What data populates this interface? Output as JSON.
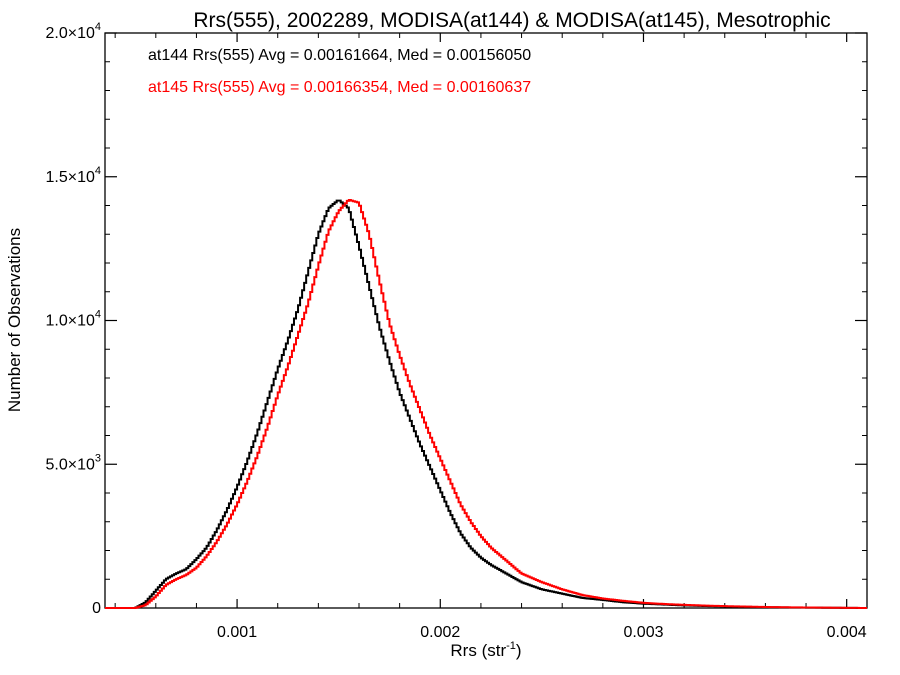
{
  "chart_data": {
    "type": "line",
    "title": "Rrs(555), 2002289, MODISA(at144) & MODISA(at145), Mesotrophic",
    "xlabel": {
      "main": "Rrs (str",
      "sup": "-1",
      "end": ")"
    },
    "ylabel": "Number of Observations",
    "xlim": [
      0.00035,
      0.0041
    ],
    "ylim": [
      0,
      20000
    ],
    "x_ticks": [
      {
        "value": 0.001,
        "label": "0.001"
      },
      {
        "value": 0.002,
        "label": "0.002"
      },
      {
        "value": 0.003,
        "label": "0.003"
      },
      {
        "value": 0.004,
        "label": "0.004"
      }
    ],
    "y_ticks": [
      {
        "value": 0,
        "mant": "0",
        "exp": ""
      },
      {
        "value": 5000,
        "mant": "5.0×10",
        "exp": "3"
      },
      {
        "value": 10000,
        "mant": "1.0×10",
        "exp": "4"
      },
      {
        "value": 15000,
        "mant": "1.5×10",
        "exp": "4"
      },
      {
        "value": 20000,
        "mant": "2.0×10",
        "exp": "4"
      }
    ],
    "annotations": [
      "at144 Rrs(555) Avg = 0.00161664, Med = 0.00156050",
      "at145 Rrs(555) Avg = 0.00166354, Med = 0.00160637"
    ],
    "series": [
      {
        "color": "#000000",
        "step": "histogram",
        "x": [
          0.00035,
          0.0005,
          0.00055,
          0.0006,
          0.00065,
          0.0007,
          0.00075,
          0.0008,
          0.00085,
          0.0009,
          0.00095,
          0.001,
          0.00105,
          0.0011,
          0.00115,
          0.0012,
          0.00125,
          0.0013,
          0.00135,
          0.0014,
          0.00145,
          0.0015,
          0.00155,
          0.0016,
          0.00165,
          0.0017,
          0.00175,
          0.0018,
          0.00185,
          0.0019,
          0.00195,
          0.002,
          0.00205,
          0.0021,
          0.00215,
          0.0022,
          0.00225,
          0.0023,
          0.00235,
          0.0024,
          0.0025,
          0.0026,
          0.0027,
          0.0028,
          0.0029,
          0.003,
          0.0031,
          0.0032,
          0.0033,
          0.0034,
          0.0035,
          0.0036,
          0.0037,
          0.0038,
          0.0039,
          0.004,
          0.0041
        ],
        "y": [
          0,
          0,
          200,
          600,
          1000,
          1200,
          1350,
          1700,
          2100,
          2700,
          3400,
          4200,
          5100,
          6100,
          7200,
          8300,
          9300,
          10400,
          11700,
          13000,
          13900,
          14200,
          13900,
          12600,
          11200,
          9800,
          8600,
          7500,
          6600,
          5700,
          4900,
          4100,
          3300,
          2600,
          2100,
          1750,
          1500,
          1300,
          1100,
          900,
          650,
          500,
          350,
          280,
          200,
          150,
          120,
          90,
          70,
          55,
          40,
          30,
          20,
          15,
          10,
          5,
          0
        ]
      },
      {
        "color": "#ff0000",
        "step": "histogram",
        "x": [
          0.00035,
          0.0005,
          0.00055,
          0.0006,
          0.00065,
          0.0007,
          0.00075,
          0.0008,
          0.00085,
          0.0009,
          0.00095,
          0.001,
          0.00105,
          0.0011,
          0.00115,
          0.0012,
          0.00125,
          0.0013,
          0.00135,
          0.0014,
          0.00145,
          0.0015,
          0.00155,
          0.0016,
          0.00165,
          0.0017,
          0.00175,
          0.0018,
          0.00185,
          0.0019,
          0.00195,
          0.002,
          0.00205,
          0.0021,
          0.00215,
          0.0022,
          0.00225,
          0.0023,
          0.00235,
          0.0024,
          0.0025,
          0.0026,
          0.0027,
          0.0028,
          0.0029,
          0.003,
          0.0031,
          0.0032,
          0.0033,
          0.0034,
          0.0035,
          0.0036,
          0.0037,
          0.0038,
          0.0039,
          0.004,
          0.0041
        ],
        "y": [
          0,
          0,
          100,
          400,
          800,
          1000,
          1150,
          1400,
          1800,
          2300,
          2900,
          3600,
          4400,
          5300,
          6300,
          7400,
          8400,
          9500,
          10600,
          11900,
          13100,
          13800,
          14200,
          14100,
          13000,
          11400,
          9900,
          8800,
          7800,
          6900,
          6000,
          5200,
          4400,
          3600,
          3000,
          2500,
          2100,
          1800,
          1500,
          1200,
          900,
          650,
          450,
          330,
          250,
          180,
          140,
          110,
          85,
          65,
          50,
          35,
          25,
          18,
          12,
          6,
          0
        ]
      }
    ]
  }
}
